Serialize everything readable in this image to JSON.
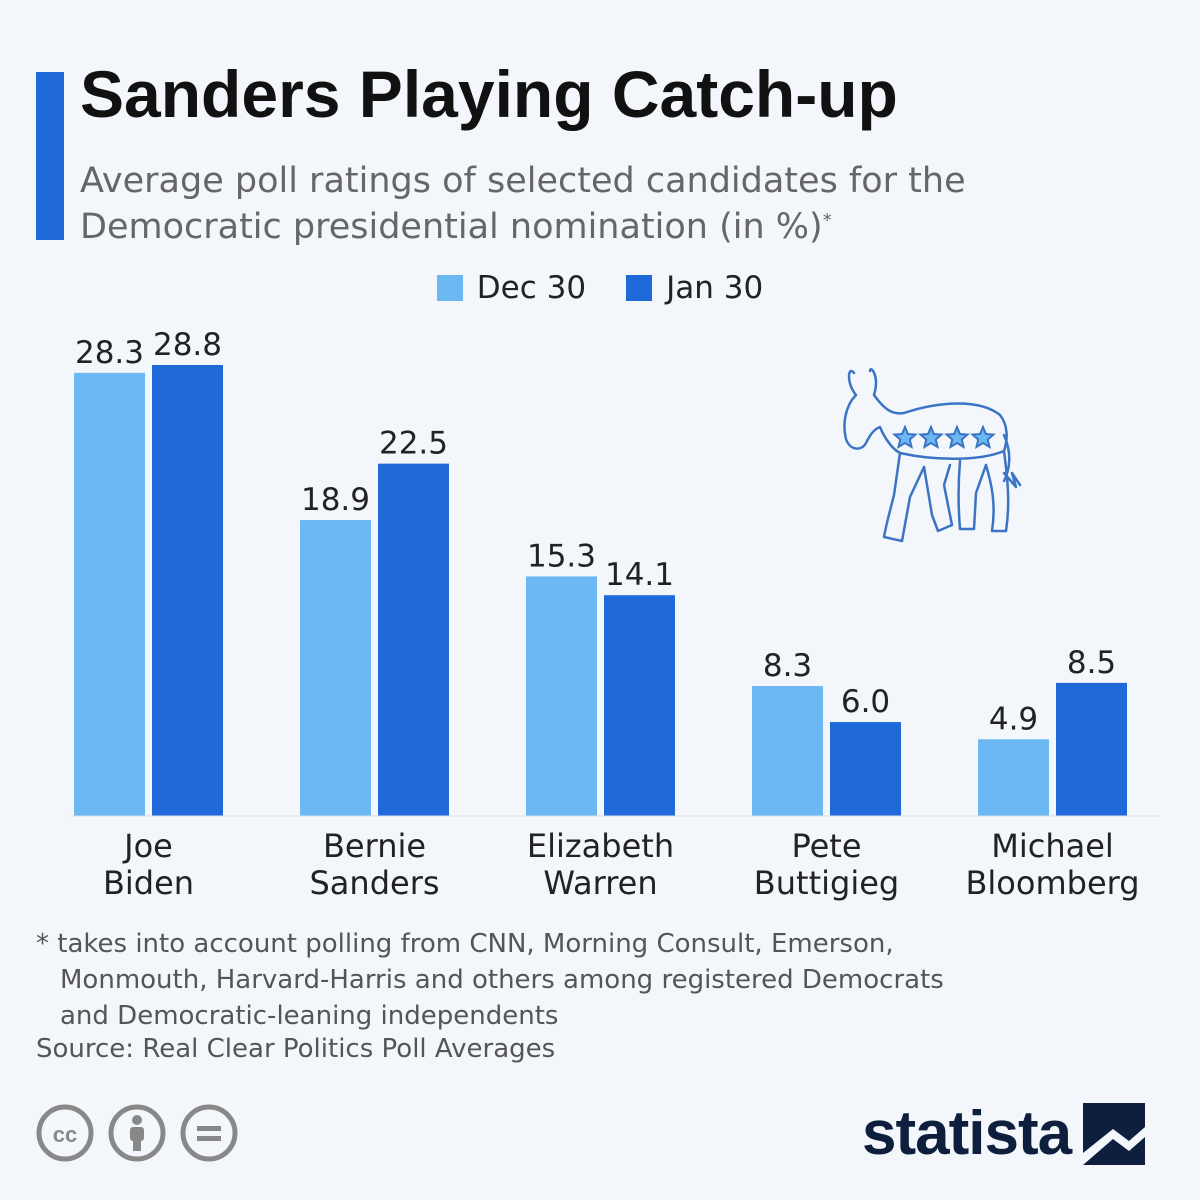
{
  "header": {
    "title": "Sanders Playing Catch-up",
    "subtitle": "Average poll ratings of selected candidates for the Democratic presidential nomination (in %)",
    "subtitle_mark": "*"
  },
  "colors": {
    "accent": "#1f6ad8",
    "series_dec": "#6cb8f2",
    "series_jan": "#1f6ad8",
    "icon_outline": "#3b74c4"
  },
  "chart_data": {
    "type": "bar",
    "categories": [
      "Joe Biden",
      "Bernie Sanders",
      "Elizabeth Warren",
      "Pete Buttigieg",
      "Michael Bloomberg"
    ],
    "category_lines": [
      [
        "Joe",
        "Biden"
      ],
      [
        "Bernie",
        "Sanders"
      ],
      [
        "Elizabeth",
        "Warren"
      ],
      [
        "Pete",
        "Buttigieg"
      ],
      [
        "Michael",
        "Bloomberg"
      ]
    ],
    "series": [
      {
        "name": "Dec 30",
        "values": [
          28.3,
          18.9,
          15.3,
          8.3,
          4.9
        ],
        "labels": [
          "28.3",
          "18.9",
          "15.3",
          "8.3",
          "4.9"
        ]
      },
      {
        "name": "Jan 30",
        "values": [
          28.8,
          22.5,
          14.1,
          6.0,
          8.5
        ],
        "labels": [
          "28.8",
          "22.5",
          "14.1",
          "6.0",
          "8.5"
        ]
      }
    ],
    "ylim": [
      0,
      28.8
    ],
    "grid": false,
    "legend": "top-center"
  },
  "footnote": {
    "line1": "* takes into account polling from CNN, Morning Consult, Emerson,",
    "line2": "Monmouth, Harvard-Harris and others among registered Democrats",
    "line3": "and Democratic-leaning independents"
  },
  "source": "Source: Real Clear Politics Poll Averages",
  "license_icons": [
    "creative-commons-icon",
    "attribution-person-icon",
    "no-derivatives-icon"
  ],
  "brand": {
    "name": "statista"
  }
}
